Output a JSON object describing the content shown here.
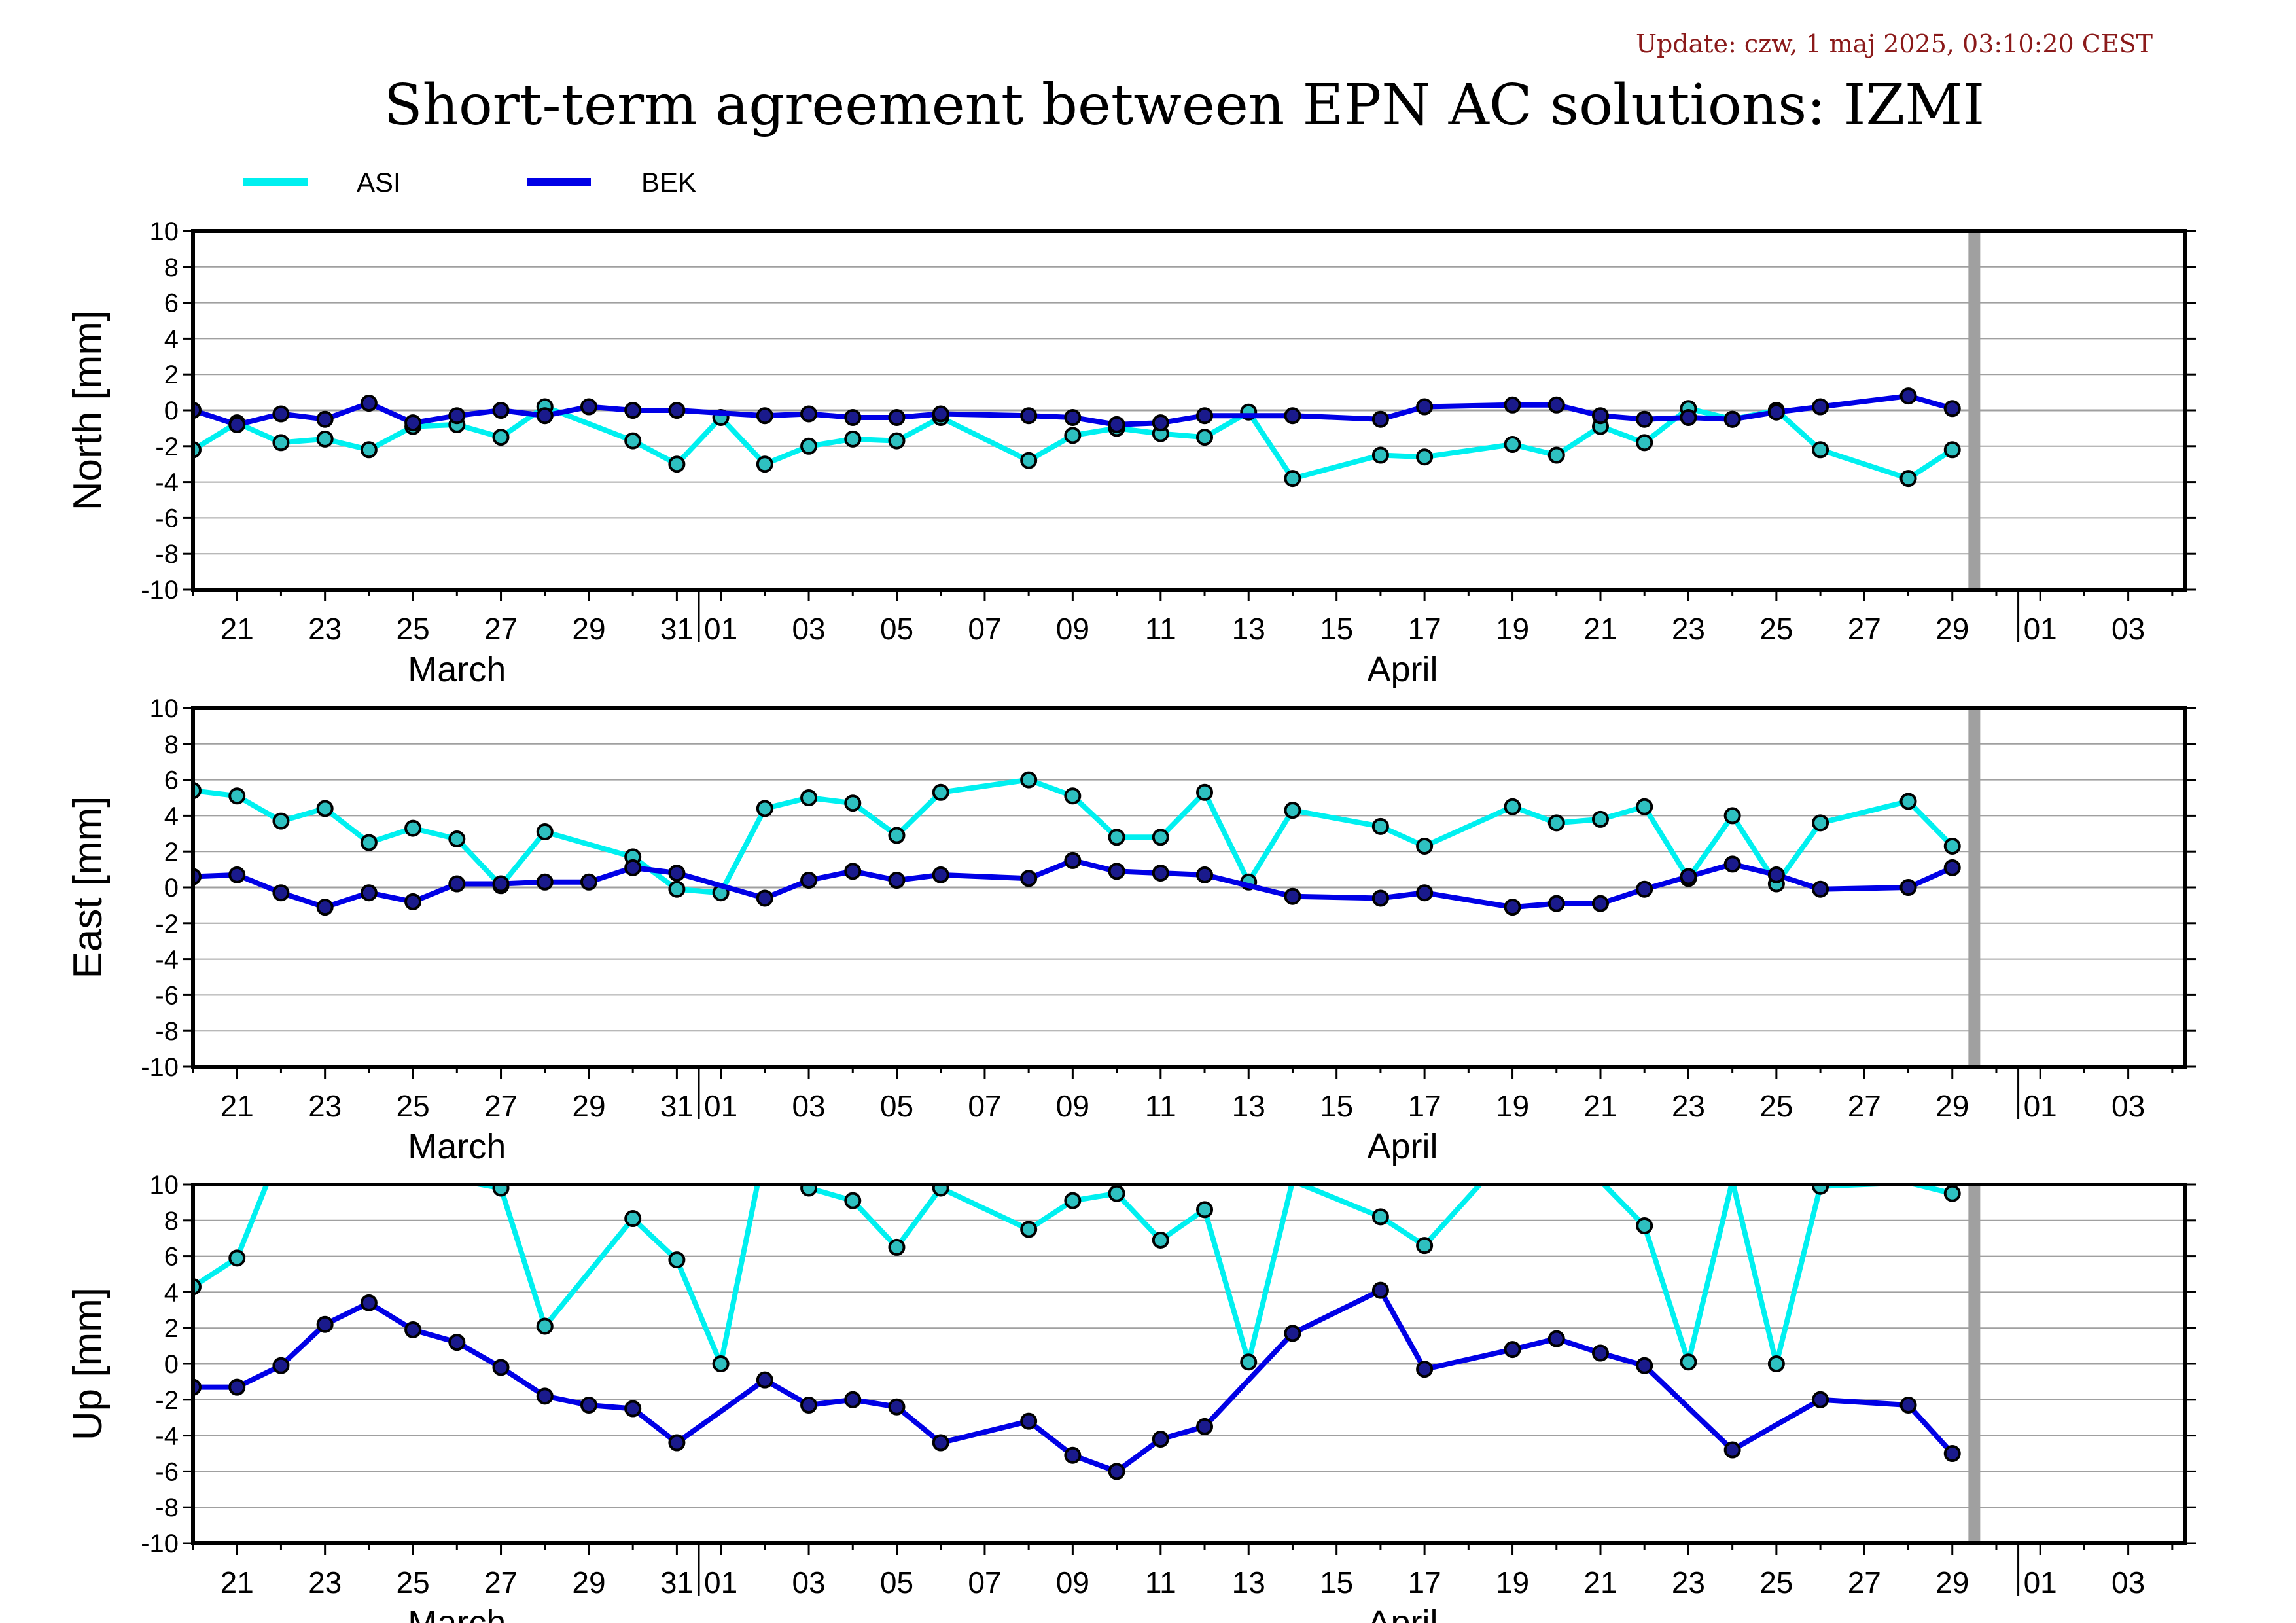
{
  "update_text": "Update: czw, 1 maj 2025, 03:10:20 CEST",
  "title": "Short-term agreement between EPN AC solutions: IZMI",
  "colors": {
    "ASI": "#00f0f0",
    "BEK": "#0000e6",
    "marker_ASI": "#2ec0c0",
    "marker_BEK": "#1a1a8c",
    "gap_bar": "#a0a0a0",
    "grid": "#a0a0a0"
  },
  "legend": [
    {
      "name": "ASI",
      "color": "#00f0f0"
    },
    {
      "name": "BEK",
      "color": "#0000e6"
    }
  ],
  "chart_data": {
    "type": "line",
    "x_unit": "date",
    "x_range": [
      "2025-03-20",
      "2025-05-03"
    ],
    "x_tick_labels": [
      "21",
      "23",
      "25",
      "27",
      "29",
      "31",
      "01",
      "03",
      "05",
      "07",
      "09",
      "11",
      "13",
      "15",
      "17",
      "19",
      "21",
      "23",
      "25",
      "27",
      "29",
      "01",
      "03"
    ],
    "x_tick_days": [
      1,
      3,
      5,
      7,
      9,
      11,
      12,
      14,
      16,
      18,
      20,
      22,
      24,
      26,
      28,
      30,
      32,
      34,
      36,
      38,
      40,
      42,
      44
    ],
    "month_labels": [
      {
        "text": "March",
        "day": 6
      },
      {
        "text": "April",
        "day": 27.5
      }
    ],
    "month_boundaries": [
      11.5,
      41.5
    ],
    "gap_bar_day": 40.5,
    "y_ticks": [
      10,
      8,
      6,
      4,
      2,
      0,
      -2,
      -4,
      -6,
      -8,
      -10
    ],
    "y_tick_labels": [
      "10",
      "8",
      "6",
      "4",
      "2",
      "0",
      "-2",
      "-4",
      "-6",
      "-8",
      "-10"
    ],
    "panels": [
      {
        "ylabel": "North [mm]",
        "ylim": [
          -10,
          10
        ],
        "series": [
          {
            "name": "ASI",
            "values": [
              [
                0,
                -2.2
              ],
              [
                1,
                -0.7
              ],
              [
                2,
                -1.8
              ],
              [
                3,
                -1.6
              ],
              [
                4,
                -2.2
              ],
              [
                5,
                -0.9
              ],
              [
                6,
                -0.8
              ],
              [
                7,
                -1.5
              ],
              [
                8,
                0.2
              ],
              [
                10,
                -1.7
              ],
              [
                11,
                -3.0
              ],
              [
                12,
                -0.4
              ],
              [
                13,
                -3.0
              ],
              [
                14,
                -2.0
              ],
              [
                15,
                -1.6
              ],
              [
                16,
                -1.7
              ],
              [
                17,
                -0.4
              ],
              [
                19,
                -2.8
              ],
              [
                20,
                -1.4
              ],
              [
                21,
                -1.0
              ],
              [
                22,
                -1.3
              ],
              [
                23,
                -1.5
              ],
              [
                24,
                -0.1
              ],
              [
                25,
                -3.8
              ],
              [
                27,
                -2.5
              ],
              [
                28,
                -2.6
              ],
              [
                30,
                -1.9
              ],
              [
                31,
                -2.5
              ],
              [
                32,
                -0.9
              ],
              [
                33,
                -1.8
              ],
              [
                34,
                0.1
              ],
              [
                35,
                -0.5
              ],
              [
                36,
                0.0
              ],
              [
                37,
                -2.2
              ],
              [
                39,
                -3.8
              ],
              [
                40,
                -2.2
              ]
            ]
          },
          {
            "name": "BEK",
            "values": [
              [
                0,
                0.0
              ],
              [
                1,
                -0.8
              ],
              [
                2,
                -0.2
              ],
              [
                3,
                -0.5
              ],
              [
                4,
                0.4
              ],
              [
                5,
                -0.7
              ],
              [
                6,
                -0.3
              ],
              [
                7,
                0.0
              ],
              [
                8,
                -0.3
              ],
              [
                9,
                0.2
              ],
              [
                10,
                0.0
              ],
              [
                11,
                0.0
              ],
              [
                13,
                -0.3
              ],
              [
                14,
                -0.2
              ],
              [
                15,
                -0.4
              ],
              [
                16,
                -0.4
              ],
              [
                17,
                -0.2
              ],
              [
                19,
                -0.3
              ],
              [
                20,
                -0.4
              ],
              [
                21,
                -0.8
              ],
              [
                22,
                -0.7
              ],
              [
                23,
                -0.3
              ],
              [
                25,
                -0.3
              ],
              [
                27,
                -0.5
              ],
              [
                28,
                0.2
              ],
              [
                30,
                0.3
              ],
              [
                31,
                0.3
              ],
              [
                32,
                -0.3
              ],
              [
                33,
                -0.5
              ],
              [
                34,
                -0.4
              ],
              [
                35,
                -0.5
              ],
              [
                36,
                -0.1
              ],
              [
                37,
                0.2
              ],
              [
                39,
                0.8
              ],
              [
                40,
                0.1
              ]
            ]
          }
        ]
      },
      {
        "ylabel": "East [mm]",
        "ylim": [
          -10,
          10
        ],
        "series": [
          {
            "name": "ASI",
            "values": [
              [
                0,
                5.4
              ],
              [
                1,
                5.1
              ],
              [
                2,
                3.7
              ],
              [
                3,
                4.4
              ],
              [
                4,
                2.5
              ],
              [
                5,
                3.3
              ],
              [
                6,
                2.7
              ],
              [
                7,
                0.1
              ],
              [
                8,
                3.1
              ],
              [
                10,
                1.7
              ],
              [
                11,
                -0.1
              ],
              [
                12,
                -0.3
              ],
              [
                13,
                4.4
              ],
              [
                14,
                5.0
              ],
              [
                15,
                4.7
              ],
              [
                16,
                2.9
              ],
              [
                17,
                5.3
              ],
              [
                19,
                6.0
              ],
              [
                20,
                5.1
              ],
              [
                21,
                2.8
              ],
              [
                22,
                2.8
              ],
              [
                23,
                5.3
              ],
              [
                24,
                0.3
              ],
              [
                25,
                4.3
              ],
              [
                27,
                3.4
              ],
              [
                28,
                2.3
              ],
              [
                30,
                4.5
              ],
              [
                31,
                3.6
              ],
              [
                32,
                3.8
              ],
              [
                33,
                4.5
              ],
              [
                34,
                0.5
              ],
              [
                35,
                4.0
              ],
              [
                36,
                0.2
              ],
              [
                37,
                3.6
              ],
              [
                39,
                4.8
              ],
              [
                40,
                2.3
              ]
            ]
          },
          {
            "name": "BEK",
            "values": [
              [
                0,
                0.6
              ],
              [
                1,
                0.7
              ],
              [
                2,
                -0.3
              ],
              [
                3,
                -1.1
              ],
              [
                4,
                -0.3
              ],
              [
                5,
                -0.8
              ],
              [
                6,
                0.2
              ],
              [
                7,
                0.2
              ],
              [
                8,
                0.3
              ],
              [
                9,
                0.3
              ],
              [
                10,
                1.1
              ],
              [
                11,
                0.8
              ],
              [
                13,
                -0.6
              ],
              [
                14,
                0.4
              ],
              [
                15,
                0.9
              ],
              [
                16,
                0.4
              ],
              [
                17,
                0.7
              ],
              [
                19,
                0.5
              ],
              [
                20,
                1.5
              ],
              [
                21,
                0.9
              ],
              [
                22,
                0.8
              ],
              [
                23,
                0.7
              ],
              [
                25,
                -0.5
              ],
              [
                27,
                -0.6
              ],
              [
                28,
                -0.3
              ],
              [
                30,
                -1.1
              ],
              [
                31,
                -0.9
              ],
              [
                32,
                -0.9
              ],
              [
                33,
                -0.1
              ],
              [
                34,
                0.6
              ],
              [
                35,
                1.3
              ],
              [
                36,
                0.7
              ],
              [
                37,
                -0.1
              ],
              [
                39,
                0.0
              ],
              [
                40,
                1.1
              ]
            ]
          }
        ]
      },
      {
        "ylabel": "Up [mm]",
        "ylim": [
          -10,
          10
        ],
        "series": [
          {
            "name": "ASI",
            "values": [
              [
                0,
                4.3
              ],
              [
                1,
                5.9
              ],
              [
                2,
                12
              ],
              [
                7,
                9.8
              ],
              [
                8,
                2.1
              ],
              [
                10,
                8.1
              ],
              [
                11,
                5.8
              ],
              [
                12,
                0.0
              ],
              [
                13,
                12
              ],
              [
                14,
                9.8
              ],
              [
                15,
                9.1
              ],
              [
                16,
                6.5
              ],
              [
                17,
                9.8
              ],
              [
                19,
                7.5
              ],
              [
                20,
                9.1
              ],
              [
                21,
                9.5
              ],
              [
                22,
                6.9
              ],
              [
                23,
                8.6
              ],
              [
                24,
                0.1
              ],
              [
                25,
                10.2
              ],
              [
                27,
                8.2
              ],
              [
                28,
                6.6
              ],
              [
                30,
                12
              ],
              [
                32,
                10.2
              ],
              [
                33,
                7.7
              ],
              [
                34,
                0.1
              ],
              [
                35,
                10.2
              ],
              [
                36,
                0.0
              ],
              [
                37,
                9.9
              ],
              [
                39,
                10.1
              ],
              [
                40,
                9.5
              ]
            ]
          },
          {
            "name": "BEK",
            "values": [
              [
                0,
                -1.3
              ],
              [
                1,
                -1.3
              ],
              [
                2,
                -0.1
              ],
              [
                3,
                2.2
              ],
              [
                4,
                3.4
              ],
              [
                5,
                1.9
              ],
              [
                6,
                1.2
              ],
              [
                7,
                -0.2
              ],
              [
                8,
                -1.8
              ],
              [
                9,
                -2.3
              ],
              [
                10,
                -2.5
              ],
              [
                11,
                -4.4
              ],
              [
                13,
                -0.9
              ],
              [
                14,
                -2.3
              ],
              [
                15,
                -2.0
              ],
              [
                16,
                -2.4
              ],
              [
                17,
                -4.4
              ],
              [
                19,
                -3.2
              ],
              [
                20,
                -5.1
              ],
              [
                21,
                -6.0
              ],
              [
                22,
                -4.2
              ],
              [
                23,
                -3.5
              ],
              [
                25,
                1.7
              ],
              [
                27,
                4.1
              ],
              [
                28,
                -0.3
              ],
              [
                30,
                0.8
              ],
              [
                31,
                1.4
              ],
              [
                32,
                0.6
              ],
              [
                33,
                -0.1
              ],
              [
                35,
                -4.8
              ],
              [
                37,
                -2.0
              ],
              [
                39,
                -2.3
              ],
              [
                40,
                -5.0
              ]
            ]
          }
        ]
      }
    ]
  }
}
